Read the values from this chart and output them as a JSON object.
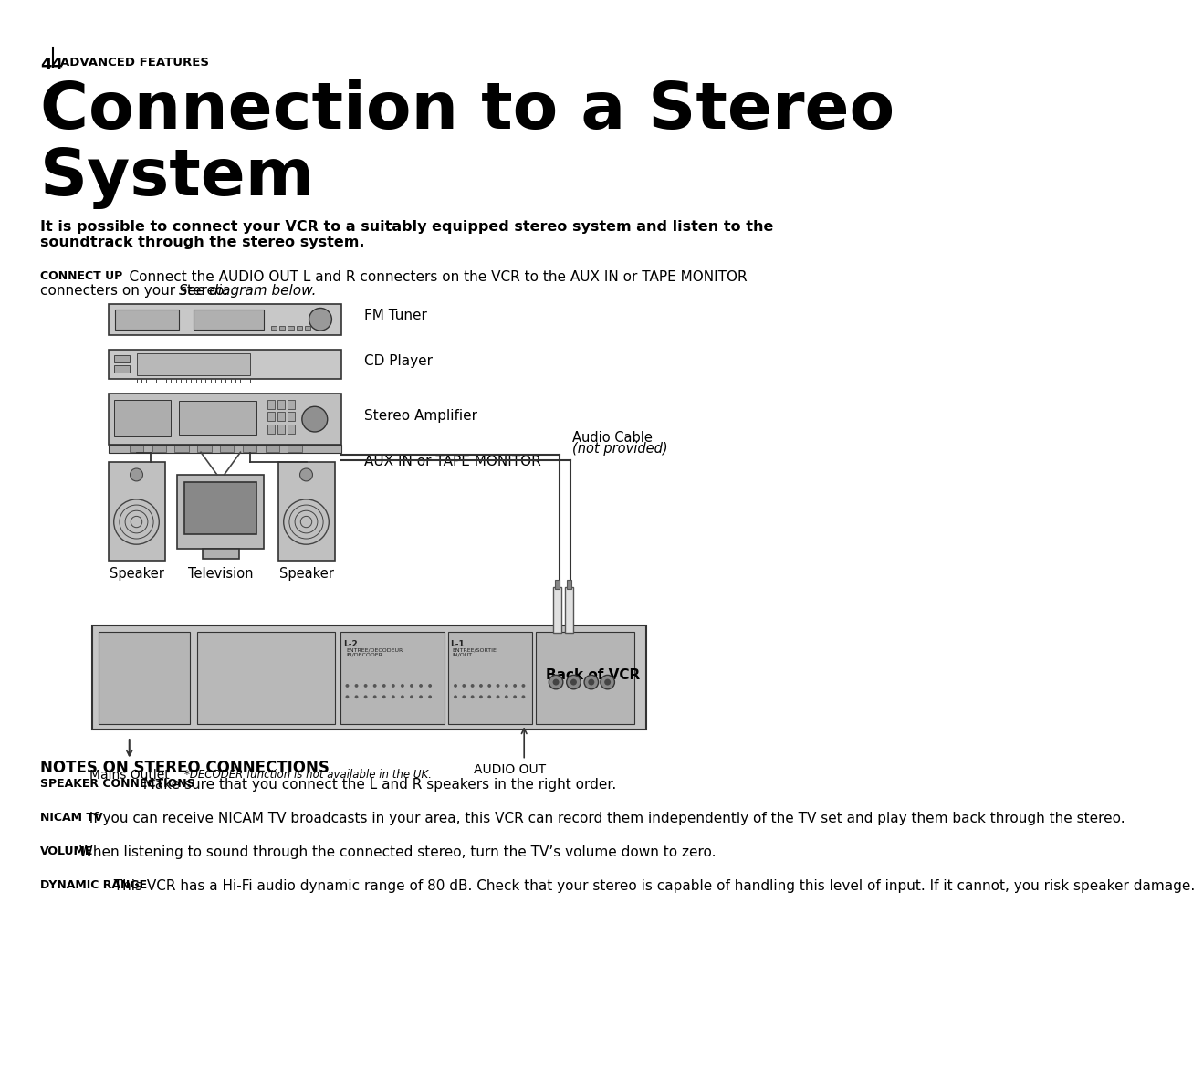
{
  "page_number": "44",
  "section_label": "ADVANCED FEATURES",
  "title_line1": "Connection to a Stereo",
  "title_line2": "System",
  "intro_text": "It is possible to connect your VCR to a suitably equipped stereo system and listen to the\nsoundtrack through the stereo system.",
  "diagram_labels": {
    "fm_tuner": "FM Tuner",
    "cd_player": "CD Player",
    "stereo_amp": "Stereo Amplifier",
    "aux_in": "AUX IN or TAPE MONITOR",
    "audio_cable": "Audio Cable",
    "audio_cable_sub": "(not provided)",
    "speaker_left": "Speaker",
    "television": "Television",
    "speaker_right": "Speaker",
    "mains_outlet": "Mains Outlet",
    "decoder_note": "*DECODER function is not available in the UK.",
    "audio_out": "AUDIO OUT",
    "back_of_vcr": "Back of VCR"
  },
  "notes_title": "NOTES ON STEREO CONNECTIONS",
  "notes": [
    {
      "label": "SPEAKER CONNECTIONS",
      "text": "  Make sure that you connect the L and R speakers in the right order."
    },
    {
      "label": "NICAM TV",
      "text": "  If you can receive NICAM TV broadcasts in your area, this VCR can record them independently of the TV set and play them back through the stereo."
    },
    {
      "label": "VOLUME",
      "text": "  When listening to sound through the connected stereo, turn the TV’s volume down to zero."
    },
    {
      "label": "DYNAMIC RANGE",
      "text": "  This VCR has a Hi-Fi audio dynamic range of 80 dB. Check that your stereo is capable of handling this level of input. If it cannot, you risk speaker damage."
    }
  ],
  "bg_color": "#ffffff",
  "text_color": "#000000",
  "device_color": "#cccccc",
  "device_stroke": "#333333"
}
